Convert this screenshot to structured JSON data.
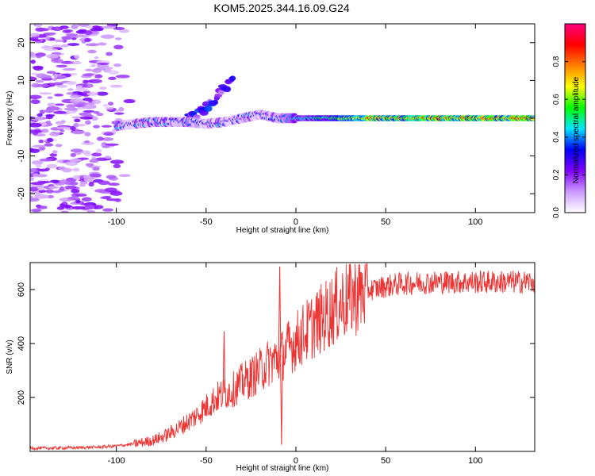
{
  "title": "KOM5.2025.344.16.09.G24",
  "chart_data": [
    {
      "type": "heatmap",
      "xlabel": "Height of straight line (km)",
      "ylabel": "Frequency (Hz)",
      "xlim": [
        -148,
        133
      ],
      "ylim": [
        -25,
        25
      ],
      "xticks": [
        -100,
        -50,
        0,
        50,
        100
      ],
      "yticks": [
        -20,
        -10,
        0,
        10,
        20
      ],
      "colorbar": {
        "label": "Normalized spectral amplitude",
        "range": [
          0,
          1
        ],
        "ticks": [
          0.0,
          0.2,
          0.4,
          0.6,
          0.8
        ],
        "tick_labels": [
          "0.0",
          "0.2",
          "0.4",
          "0.6",
          "0.8"
        ],
        "stops": [
          "#ffffff",
          "#cc99ff",
          "#8000ff",
          "#0000ff",
          "#00e5ff",
          "#00ff00",
          "#ffff00",
          "#ff8000",
          "#ff0000",
          "#ff0080"
        ]
      },
      "traces": [
        {
          "name": "noise-column",
          "x_range": [
            -148,
            -90
          ],
          "f_range": [
            -25,
            25
          ],
          "amplitude": 0.15
        },
        {
          "name": "rising-branch",
          "points": [
            [
              -60,
              0
            ],
            [
              -52,
              2
            ],
            [
              -45,
              5
            ],
            [
              -40,
              8
            ],
            [
              -35,
              10
            ]
          ],
          "amplitude": 0.25
        },
        {
          "name": "main-trace",
          "points": [
            [
              -100,
              -2
            ],
            [
              -90,
              -1.5
            ],
            [
              -80,
              -1
            ],
            [
              -70,
              -1
            ],
            [
              -60,
              -1
            ],
            [
              -50,
              -1.5
            ],
            [
              -40,
              -1
            ],
            [
              -30,
              0
            ],
            [
              -20,
              1
            ],
            [
              -10,
              0
            ],
            [
              0,
              0
            ],
            [
              20,
              0
            ],
            [
              40,
              0
            ],
            [
              60,
              0
            ],
            [
              80,
              0
            ],
            [
              100,
              0
            ],
            [
              120,
              0
            ],
            [
              133,
              0
            ]
          ]
        }
      ]
    },
    {
      "type": "line",
      "xlabel": "Height of straight line (km)",
      "ylabel": "SNR (v/v)",
      "xlim": [
        -148,
        133
      ],
      "ylim": [
        0,
        700
      ],
      "xticks": [
        -100,
        -50,
        0,
        50,
        100
      ],
      "yticks": [
        200,
        400,
        600
      ],
      "color": "#ee3333",
      "series": [
        {
          "name": "SNR",
          "x": [
            -148,
            -140,
            -130,
            -120,
            -110,
            -100,
            -90,
            -80,
            -75,
            -70,
            -65,
            -60,
            -55,
            -50,
            -45,
            -40,
            -35,
            -30,
            -25,
            -20,
            -15,
            -12,
            -10,
            -8,
            -5,
            0,
            5,
            10,
            15,
            20,
            25,
            30,
            35,
            40,
            45,
            50,
            55,
            60,
            70,
            80,
            90,
            100,
            110,
            120,
            133
          ],
          "y": [
            12,
            12,
            13,
            14,
            16,
            20,
            28,
            40,
            52,
            68,
            88,
            110,
            135,
            165,
            195,
            215,
            230,
            255,
            275,
            300,
            330,
            340,
            345,
            355,
            380,
            410,
            440,
            470,
            495,
            525,
            550,
            570,
            585,
            598,
            605,
            612,
            618,
            622,
            626,
            628,
            628,
            628,
            628,
            628,
            628
          ]
        }
      ],
      "annotations": [
        {
          "x": -40,
          "y": 445
        },
        {
          "x": -9,
          "y": 685
        },
        {
          "x": -8,
          "y": 25
        }
      ]
    }
  ]
}
